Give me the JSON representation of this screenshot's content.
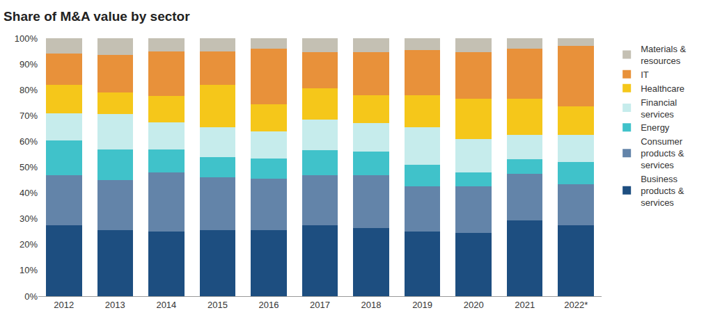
{
  "chart_data": {
    "type": "bar",
    "title": "Share of M&A value by sector",
    "stacked": true,
    "grid": false,
    "legend": "right",
    "categories": [
      "2012",
      "2013",
      "2014",
      "2015",
      "2016",
      "2017",
      "2018",
      "2019",
      "2020",
      "2021",
      "2022*"
    ],
    "ylim": [
      0,
      100
    ],
    "yticks": [
      {
        "value": 0,
        "label": "0%"
      },
      {
        "value": 10,
        "label": "10%"
      },
      {
        "value": 20,
        "label": "20%"
      },
      {
        "value": 30,
        "label": "30%"
      },
      {
        "value": 40,
        "label": "40%"
      },
      {
        "value": 50,
        "label": "50%"
      },
      {
        "value": 60,
        "label": "60%"
      },
      {
        "value": 70,
        "label": "70%"
      },
      {
        "value": 80,
        "label": "80%"
      },
      {
        "value": 90,
        "label": "90%"
      },
      {
        "value": 100,
        "label": "100%"
      }
    ],
    "series": [
      {
        "name": "Business products & services",
        "color": "#1d4e80",
        "values": [
          27.5,
          25.5,
          25,
          25.5,
          25.5,
          27.5,
          26.5,
          25,
          24.5,
          29.5,
          27.5
        ]
      },
      {
        "name": "Consumer products & services",
        "color": "#6384a9",
        "values": [
          19.5,
          19.5,
          23,
          20.5,
          20,
          19.5,
          20.5,
          17.5,
          18,
          18,
          16
        ]
      },
      {
        "name": "Energy",
        "color": "#40c2ca",
        "values": [
          13.5,
          12,
          9,
          8,
          8,
          9.5,
          9,
          8.5,
          5.5,
          5.5,
          8.5
        ]
      },
      {
        "name": "Financial services",
        "color": "#c6ecec",
        "values": [
          10.5,
          13.5,
          10.5,
          11.5,
          10.5,
          12,
          11,
          14.5,
          13,
          9.5,
          10.5
        ]
      },
      {
        "name": "Healthcare",
        "color": "#f5c71a",
        "values": [
          11,
          8.5,
          10,
          16.5,
          10.5,
          12,
          11,
          12.5,
          15.5,
          14,
          11
        ]
      },
      {
        "name": "IT",
        "color": "#e8913a",
        "values": [
          12,
          14.5,
          17.5,
          13,
          21.5,
          14,
          16.5,
          17.5,
          18,
          19.5,
          23.5
        ]
      },
      {
        "name": "Materials & resources",
        "color": "#c4c0b3",
        "values": [
          6,
          6.5,
          5,
          5,
          4,
          5.5,
          5.5,
          4.5,
          5.5,
          4,
          3
        ]
      }
    ]
  }
}
